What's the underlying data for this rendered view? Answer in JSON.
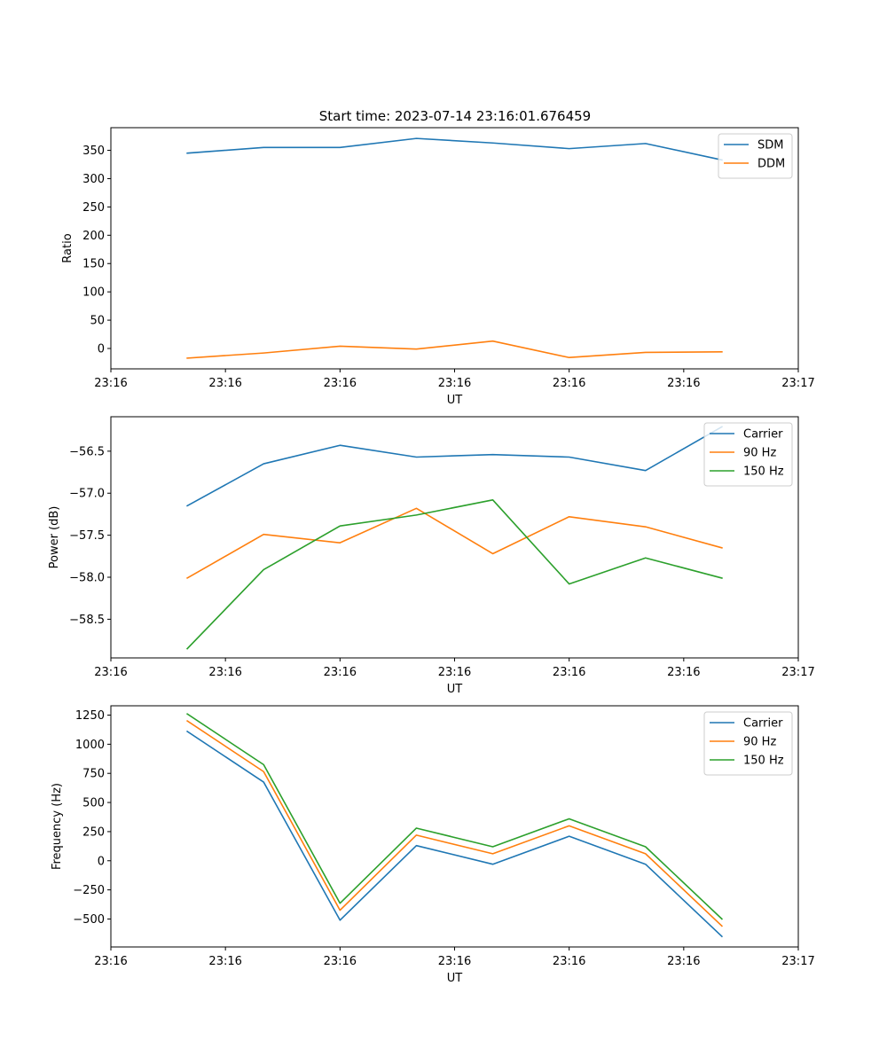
{
  "figure": {
    "title": "Start time: 2023-07-14 23:16:01.676459"
  },
  "chart_data": [
    {
      "type": "line",
      "title": "Start time: 2023-07-14 23:16:01.676459",
      "xlabel": "UT",
      "ylabel": "Ratio",
      "x_index": [
        1,
        2,
        3,
        4,
        5,
        6,
        7,
        8
      ],
      "xlim": [
        0,
        9
      ],
      "x_ticks": [
        0,
        1.5,
        3,
        4.5,
        6,
        7.5,
        9
      ],
      "x_tick_labels": [
        "23:16",
        "23:16",
        "23:16",
        "23:16",
        "23:16",
        "23:16",
        "23:17"
      ],
      "ylim": [
        -36,
        390
      ],
      "y_ticks": [
        0,
        50,
        100,
        150,
        200,
        250,
        300,
        350
      ],
      "y_tick_labels": [
        "0",
        "50",
        "100",
        "150",
        "200",
        "250",
        "300",
        "350"
      ],
      "legend_position": "top-right",
      "series": [
        {
          "name": "SDM",
          "color": "#1f77b4",
          "values": [
            345,
            355,
            355,
            371,
            363,
            353,
            362,
            333
          ]
        },
        {
          "name": "DDM",
          "color": "#ff7f0e",
          "values": [
            -17,
            -8,
            4,
            -1,
            13,
            -16,
            -7,
            -6
          ]
        }
      ]
    },
    {
      "type": "line",
      "title": "",
      "xlabel": "UT",
      "ylabel": "Power (dB)",
      "x_index": [
        1,
        2,
        3,
        4,
        5,
        6,
        7,
        8
      ],
      "xlim": [
        0,
        9
      ],
      "x_ticks": [
        0,
        1.5,
        3,
        4.5,
        6,
        7.5,
        9
      ],
      "x_tick_labels": [
        "23:16",
        "23:16",
        "23:16",
        "23:16",
        "23:16",
        "23:16",
        "23:17"
      ],
      "ylim": [
        -58.96,
        -56.09
      ],
      "y_ticks": [
        -58.5,
        -58.0,
        -57.5,
        -57.0,
        -56.5
      ],
      "y_tick_labels": [
        "−58.5",
        "−58.0",
        "−57.5",
        "−57.0",
        "−56.5"
      ],
      "legend_position": "top-right",
      "series": [
        {
          "name": "Carrier",
          "color": "#1f77b4",
          "values": [
            -57.15,
            -56.65,
            -56.43,
            -56.57,
            -56.54,
            -56.57,
            -56.73,
            -56.21
          ]
        },
        {
          "name": "90 Hz",
          "color": "#ff7f0e",
          "values": [
            -58.01,
            -57.49,
            -57.59,
            -57.18,
            -57.72,
            -57.28,
            -57.4,
            -57.65
          ]
        },
        {
          "name": "150 Hz",
          "color": "#2ca02c",
          "values": [
            -58.85,
            -57.91,
            -57.39,
            -57.26,
            -57.08,
            -58.08,
            -57.77,
            -58.01
          ]
        }
      ]
    },
    {
      "type": "line",
      "title": "",
      "xlabel": "UT",
      "ylabel": "Frequency (Hz)",
      "x_index": [
        1,
        2,
        3,
        4,
        5,
        6,
        7,
        8
      ],
      "xlim": [
        0,
        9
      ],
      "x_ticks": [
        0,
        1.5,
        3,
        4.5,
        6,
        7.5,
        9
      ],
      "x_tick_labels": [
        "23:16",
        "23:16",
        "23:16",
        "23:16",
        "23:16",
        "23:16",
        "23:17"
      ],
      "ylim": [
        -740,
        1330
      ],
      "y_ticks": [
        -500,
        -250,
        0,
        250,
        500,
        750,
        1000,
        1250
      ],
      "y_tick_labels": [
        "−500",
        "−250",
        "0",
        "250",
        "500",
        "750",
        "1000",
        "1250"
      ],
      "legend_position": "top-right",
      "series": [
        {
          "name": "Carrier",
          "color": "#1f77b4",
          "values": [
            1110,
            675,
            -510,
            130,
            -30,
            210,
            -30,
            -650
          ]
        },
        {
          "name": "90 Hz",
          "color": "#ff7f0e",
          "values": [
            1200,
            765,
            -425,
            220,
            60,
            300,
            60,
            -560
          ]
        },
        {
          "name": "150 Hz",
          "color": "#2ca02c",
          "values": [
            1260,
            825,
            -365,
            280,
            120,
            360,
            120,
            -500
          ]
        }
      ]
    }
  ]
}
